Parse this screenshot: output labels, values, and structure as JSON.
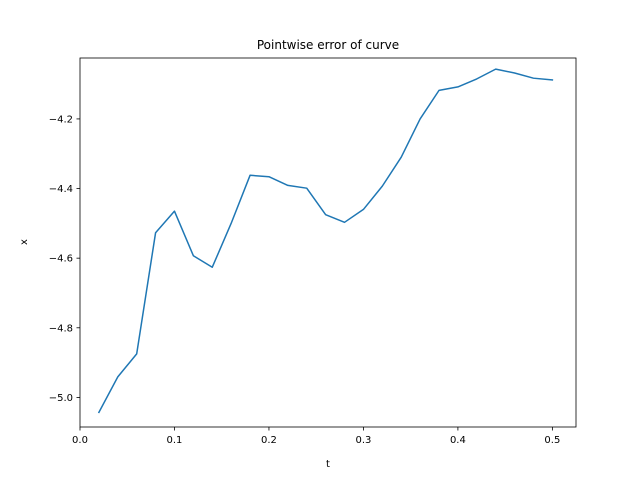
{
  "chart_data": {
    "type": "line",
    "title": "Pointwise error of curve",
    "xlabel": "t",
    "ylabel": "x",
    "xlim": [
      0.0,
      0.525
    ],
    "ylim": [
      -5.085,
      -4.025
    ],
    "xticks": [
      0.0,
      0.1,
      0.2,
      0.3,
      0.4,
      0.5
    ],
    "xtick_labels": [
      "0.0",
      "0.1",
      "0.2",
      "0.3",
      "0.4",
      "0.5"
    ],
    "yticks": [
      -5.0,
      -4.8,
      -4.6,
      -4.4,
      -4.2
    ],
    "ytick_labels": [
      "−5.0",
      "−4.8",
      "−4.6",
      "−4.4",
      "−4.2"
    ],
    "grid": false,
    "series": [
      {
        "color": "#1f77b4",
        "x": [
          0.02,
          0.04,
          0.06,
          0.08,
          0.1,
          0.12,
          0.14,
          0.16,
          0.18,
          0.2,
          0.22,
          0.24,
          0.26,
          0.28,
          0.3,
          0.32,
          0.34,
          0.36,
          0.38,
          0.4,
          0.42,
          0.44,
          0.46,
          0.48,
          0.5
        ],
        "y": [
          -5.043,
          -4.941,
          -4.875,
          -4.527,
          -4.465,
          -4.593,
          -4.626,
          -4.5,
          -4.362,
          -4.366,
          -4.391,
          -4.399,
          -4.475,
          -4.497,
          -4.46,
          -4.393,
          -4.31,
          -4.2,
          -4.118,
          -4.108,
          -4.085,
          -4.057,
          -4.068,
          -4.083,
          -4.088
        ]
      }
    ]
  }
}
